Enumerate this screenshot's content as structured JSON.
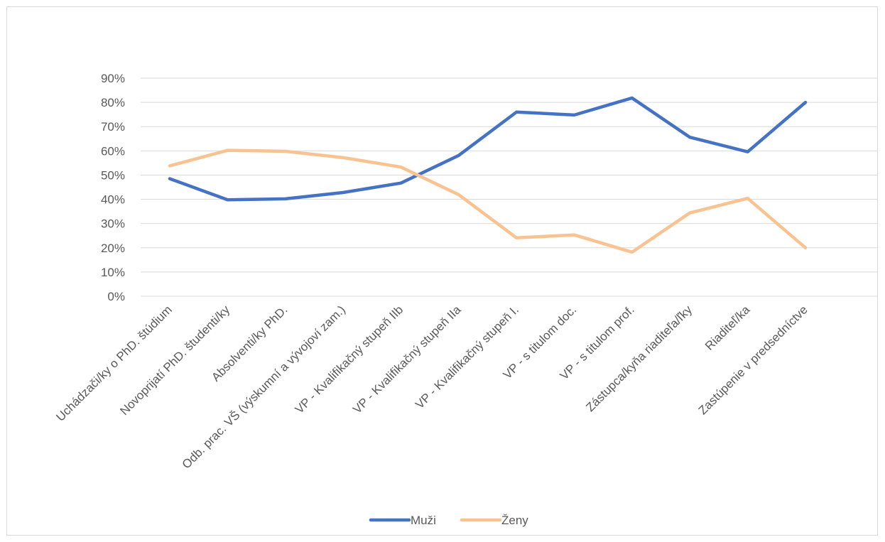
{
  "chart_data": {
    "type": "line",
    "title": "",
    "xlabel": "",
    "ylabel": "",
    "ylim": [
      0,
      90
    ],
    "yticks": [
      "0%",
      "10%",
      "20%",
      "30%",
      "40%",
      "50%",
      "60%",
      "70%",
      "80%",
      "90%"
    ],
    "grid": true,
    "legend_position": "bottom",
    "categories": [
      "Uchádzači/ky o PhD. štúdium",
      "Novoprijatí PhD. študenti/ky",
      "Absolventi/ky PhD.",
      "Odb. prac. VŠ (výskumní a vývojoví zam.)",
      "VP - Kvalifikačný stupeň IIb",
      "VP - Kvalifikačný stupeň IIa",
      "VP - Kvalifikačný stupeň I.",
      "VP - s titulom doc.",
      "VP - s titulom prof.",
      "Zástupca/kyňa riaditeľa/ľky",
      "Riaditeľ/ka",
      "Zastúpenie v predsedníctve"
    ],
    "series": [
      {
        "name": "Muži",
        "color": "#4472c4",
        "values": [
          48.5,
          39.8,
          40.2,
          42.8,
          46.7,
          58.1,
          76.0,
          74.8,
          81.8,
          65.6,
          59.6,
          80.0
        ]
      },
      {
        "name": "Ženy",
        "color": "#f8c391",
        "values": [
          53.8,
          60.2,
          59.8,
          57.2,
          53.3,
          41.9,
          24.1,
          25.3,
          18.2,
          34.4,
          40.4,
          20.0
        ]
      }
    ]
  }
}
